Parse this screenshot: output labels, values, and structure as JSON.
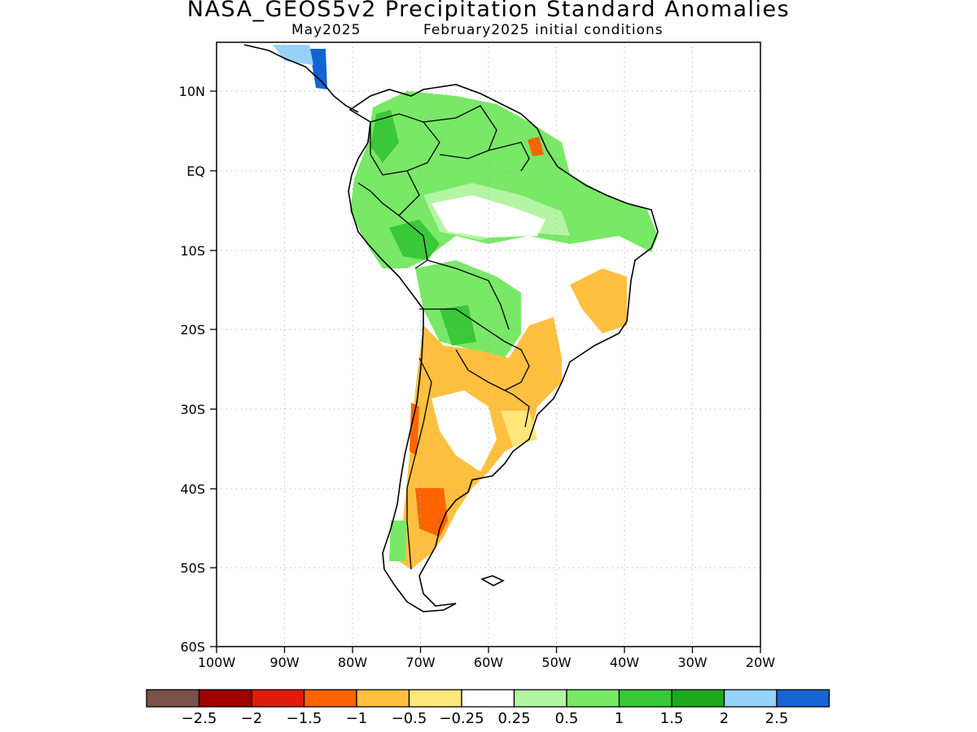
{
  "title": "NASA_GEOS5v2 Precipitation Standard Anomalies",
  "subtitle_left": "May2025",
  "subtitle_right": "February2025 initial conditions",
  "map": {
    "lat_ticks": [
      "10N",
      "EQ",
      "10S",
      "20S",
      "30S",
      "40S",
      "50S",
      "60S"
    ],
    "lon_ticks": [
      "100W",
      "90W",
      "80W",
      "70W",
      "60W",
      "50W",
      "40W",
      "30W",
      "20W"
    ],
    "lon_range": [
      -100,
      -20
    ],
    "lat_range": [
      -60,
      15
    ],
    "grid": "dotted",
    "coastline_color": "#000000"
  },
  "legend": {
    "colors": [
      "#7b5248",
      "#a00000",
      "#e01b0b",
      "#ff6400",
      "#ffc040",
      "#ffe67a",
      "#ffffff",
      "#b4f5a4",
      "#78e866",
      "#38c838",
      "#1ea81e",
      "#96d2fa",
      "#1464d2"
    ],
    "labels": [
      "−2.5",
      "−2",
      "−1.5",
      "−1",
      "−0.5",
      "−0.25",
      "0.25",
      "0.5",
      "1",
      "1.5",
      "2",
      "2.5"
    ]
  }
}
